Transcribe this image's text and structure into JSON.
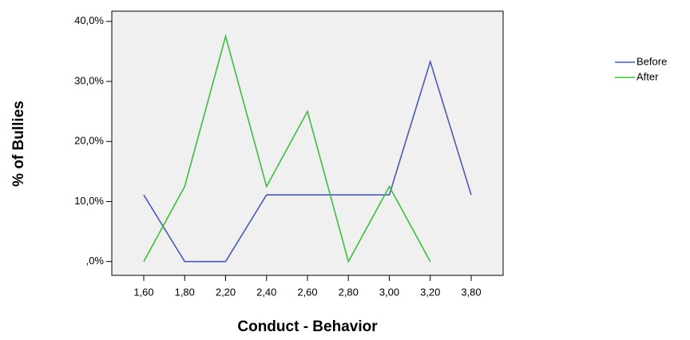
{
  "chart_data": {
    "type": "line",
    "x_label": "Conduct - Behavior",
    "y_label": "% of Bullies",
    "categories": [
      "1,60",
      "1,80",
      "2,20",
      "2,40",
      "2,60",
      "2,80",
      "3,00",
      "3,20",
      "3,80"
    ],
    "series": [
      {
        "name": "Before",
        "color": "#4a5ab4",
        "values": [
          11.1,
          0,
          0,
          11.1,
          11.1,
          11.1,
          11.1,
          33.3,
          11.1
        ]
      },
      {
        "name": "After",
        "color": "#3cbd3c",
        "values": [
          0,
          12.5,
          37.5,
          12.5,
          25,
          0,
          12.5,
          0,
          null
        ]
      }
    ],
    "ylim": [
      -2.3,
      41.7
    ],
    "yticks": [
      {
        "value": 0,
        "label": ",0%"
      },
      {
        "value": 10,
        "label": "10,0%"
      },
      {
        "value": 20,
        "label": "20,0%"
      },
      {
        "value": 30,
        "label": "30,0%"
      },
      {
        "value": 40,
        "label": "40,0%"
      }
    ],
    "legend": "right"
  }
}
